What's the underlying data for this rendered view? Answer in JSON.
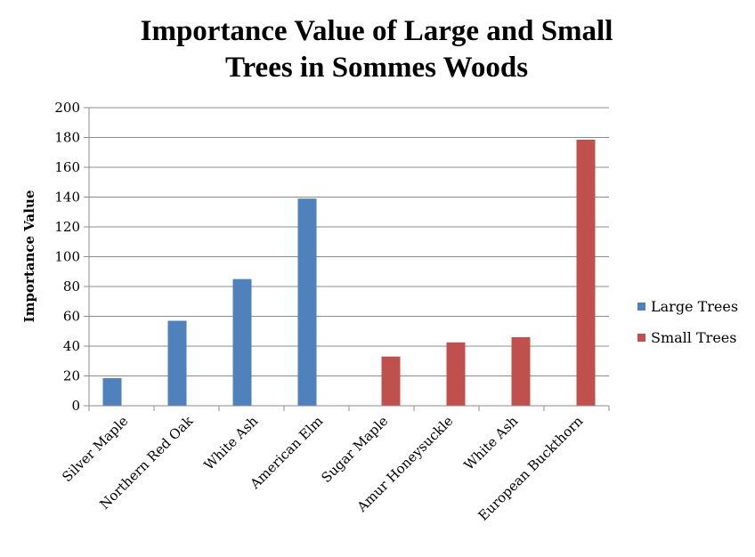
{
  "chart_data": {
    "type": "bar",
    "title": [
      "Importance Value of Large and Small",
      "Trees in Sommes Woods"
    ],
    "xlabel": "",
    "ylabel": "Importance Value",
    "ylim": [
      0,
      200
    ],
    "yticks": [
      0,
      20,
      40,
      60,
      80,
      100,
      120,
      140,
      160,
      180,
      200
    ],
    "grid": true,
    "legend_position": "right",
    "categories": [
      "Silver Maple",
      "Northern Red Oak",
      "White Ash",
      "American Elm",
      "Sugar Maple",
      "Amur Honeysuckle",
      "White Ash",
      "European Buckthorn"
    ],
    "series": [
      {
        "name": "Large Trees",
        "color": "#4f81bd",
        "values": [
          18.5,
          57,
          85,
          139,
          null,
          null,
          null,
          null
        ]
      },
      {
        "name": "Small Trees",
        "color": "#c0504d",
        "values": [
          null,
          null,
          null,
          null,
          33,
          42.5,
          46,
          178.5
        ]
      }
    ]
  }
}
